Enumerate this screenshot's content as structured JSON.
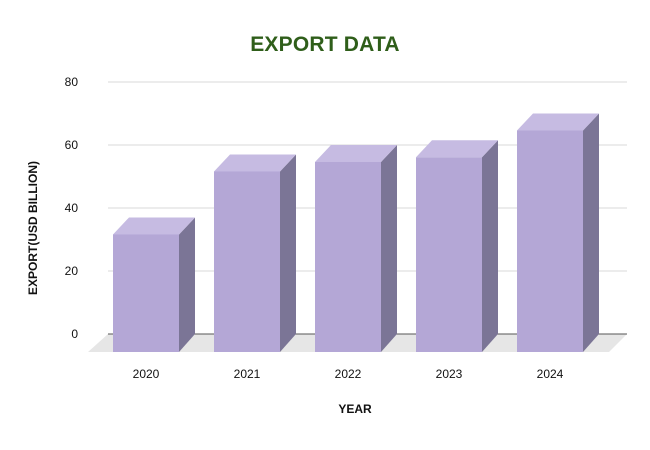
{
  "chart_data": {
    "type": "bar",
    "title": "EXPORT DATA",
    "xlabel": "YEAR",
    "ylabel": "EXPORT(USD BILLION)",
    "categories": [
      "2020",
      "2021",
      "2022",
      "2023",
      "2024"
    ],
    "values": [
      37,
      57,
      60,
      61.5,
      70
    ],
    "ylim": [
      0,
      80
    ],
    "yticks": [
      "0",
      "20",
      "40",
      "60",
      "80"
    ],
    "grid": true,
    "colors": {
      "bar_front": "#b4a7d6",
      "bar_top": "#c6bbe2",
      "bar_side": "#7b7596",
      "floor": "#e6e6e6",
      "grid": "#d9d9d9",
      "title": "#2f5e1a"
    }
  }
}
